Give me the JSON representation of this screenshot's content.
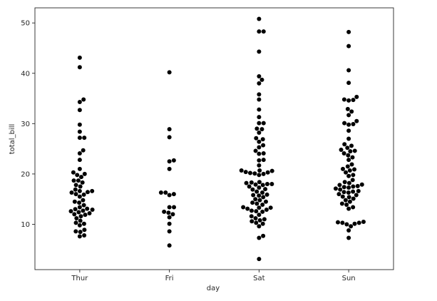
{
  "chart_data": {
    "type": "scatter",
    "subtype": "swarm",
    "title": "",
    "xlabel": "day",
    "ylabel": "total_bill",
    "categories": [
      "Thur",
      "Fri",
      "Sat",
      "Sun"
    ],
    "ylim": [
      1,
      53
    ],
    "yticks": [
      10,
      20,
      30,
      40,
      50
    ],
    "grid": false,
    "marker_color": "#000000",
    "series": [
      {
        "category": "Thur",
        "values": [
          43.1,
          41.2,
          34.8,
          34.3,
          32.7,
          29.8,
          28.4,
          27.2,
          27.2,
          24.7,
          24.1,
          22.8,
          21.0,
          20.3,
          20.0,
          19.8,
          19.4,
          18.7,
          18.7,
          18.3,
          17.8,
          17.5,
          16.9,
          16.6,
          16.6,
          16.4,
          16.3,
          16.0,
          15.9,
          15.5,
          14.8,
          14.5,
          14.3,
          13.8,
          13.4,
          13.1,
          13.0,
          12.9,
          12.7,
          12.6,
          12.4,
          12.2,
          12.0,
          11.9,
          11.6,
          11.2,
          10.7,
          10.3,
          10.1,
          9.8,
          8.9,
          8.6,
          8.5,
          7.8,
          7.6
        ]
      },
      {
        "category": "Fri",
        "values": [
          40.2,
          28.9,
          27.3,
          22.7,
          22.5,
          21.0,
          16.3,
          16.3,
          16.0,
          15.8,
          13.4,
          13.4,
          12.5,
          12.3,
          12.0,
          11.4,
          10.1,
          8.6,
          5.8
        ]
      },
      {
        "category": "Sat",
        "values": [
          50.8,
          48.3,
          48.3,
          44.3,
          39.4,
          38.7,
          38.0,
          35.8,
          34.8,
          32.8,
          31.3,
          30.1,
          30.1,
          29.0,
          28.9,
          28.2,
          27.1,
          26.9,
          26.4,
          25.7,
          25.3,
          24.6,
          24.1,
          24.0,
          22.8,
          22.7,
          21.7,
          20.7,
          20.7,
          20.6,
          20.4,
          20.3,
          20.2,
          20.1,
          20.0,
          19.8,
          18.4,
          18.3,
          18.2,
          18.0,
          18.0,
          17.9,
          17.8,
          17.5,
          17.3,
          17.0,
          16.9,
          16.5,
          16.3,
          15.9,
          15.8,
          15.7,
          15.4,
          15.0,
          14.8,
          14.5,
          14.3,
          14.1,
          13.9,
          13.4,
          13.3,
          13.3,
          13.1,
          12.9,
          12.7,
          12.6,
          12.5,
          11.9,
          11.6,
          11.2,
          11.0,
          10.8,
          10.6,
          10.3,
          10.1,
          9.6,
          7.7,
          7.3,
          3.1
        ]
      },
      {
        "category": "Sun",
        "values": [
          48.2,
          45.4,
          40.6,
          38.1,
          35.3,
          34.8,
          34.7,
          34.6,
          32.9,
          32.4,
          31.7,
          30.5,
          30.1,
          29.9,
          29.8,
          28.6,
          27.0,
          25.9,
          25.6,
          25.2,
          24.8,
          24.6,
          24.5,
          24.1,
          23.7,
          23.3,
          22.8,
          21.9,
          21.5,
          21.0,
          20.9,
          20.7,
          20.3,
          19.8,
          19.6,
          18.8,
          18.4,
          18.2,
          17.9,
          17.8,
          17.6,
          17.5,
          17.4,
          17.3,
          17.1,
          16.9,
          16.6,
          16.5,
          16.4,
          16.3,
          16.0,
          15.8,
          15.5,
          15.4,
          15.1,
          14.8,
          14.5,
          14.1,
          13.9,
          13.4,
          13.1,
          10.5,
          10.4,
          10.3,
          10.3,
          10.1,
          10.0,
          9.6,
          8.8,
          7.3
        ]
      }
    ]
  }
}
